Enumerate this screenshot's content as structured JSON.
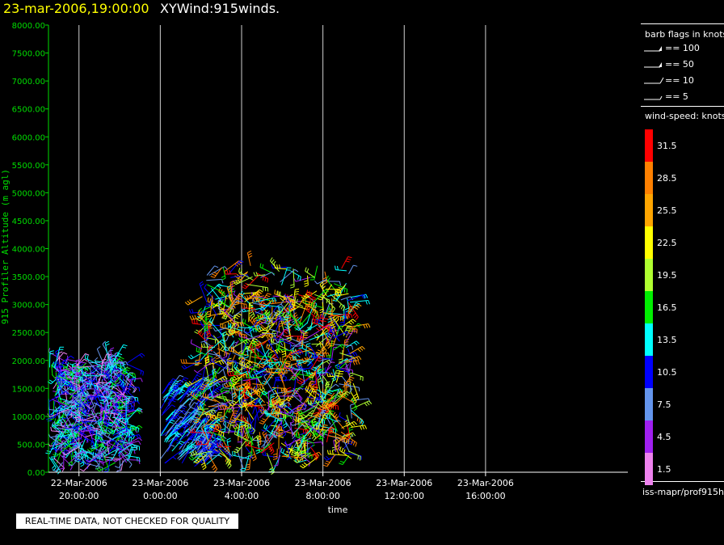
{
  "header": {
    "date": "23-mar-2006,19:00:00",
    "title": "XYWind:915winds."
  },
  "chart_data": {
    "type": "scatter",
    "ylabel": "915 Profiler Altitude (m agl)",
    "xlabel": "time",
    "ylim": [
      0,
      8000
    ],
    "xlim": [
      "2006-03-22 18:30",
      "2006-03-23 23:00"
    ],
    "yticks": [
      "0.00",
      "500.00",
      "1000.00",
      "1500.00",
      "2000.00",
      "2500.00",
      "3000.00",
      "3500.00",
      "4000.00",
      "4500.00",
      "5000.00",
      "5500.00",
      "6000.00",
      "6500.00",
      "7000.00",
      "7500.00",
      "8000.00"
    ],
    "xticks": [
      {
        "date": "22-Mar-2006",
        "time": "20:00:00"
      },
      {
        "date": "23-Mar-2006",
        "time": "0:00:00"
      },
      {
        "date": "23-Mar-2006",
        "time": "4:00:00"
      },
      {
        "date": "23-Mar-2006",
        "time": "8:00:00"
      },
      {
        "date": "23-Mar-2006",
        "time": "12:00:00"
      },
      {
        "date": "23-Mar-2006",
        "time": "16:00:00"
      }
    ],
    "grid": "vertical",
    "data_clusters": [
      {
        "time_start": "2006-03-22 18:30",
        "time_end": "2006-03-22 22:30",
        "alt_min": 150,
        "alt_max": 2000,
        "speed_range": [
          1.5,
          16.5
        ]
      },
      {
        "time_start": "2006-03-23 00:00",
        "time_end": "2006-03-23 02:30",
        "alt_min": 100,
        "alt_max": 1500,
        "speed_range": [
          7.5,
          13.5
        ]
      },
      {
        "time_start": "2006-03-23 02:00",
        "time_end": "2006-03-23 09:30",
        "alt_min": 200,
        "alt_max": 3700,
        "speed_range": [
          4.5,
          31.5
        ]
      }
    ]
  },
  "legend": {
    "barb_title": "barb flags in knots",
    "barbs": [
      {
        "label": "== 100",
        "kind": "pennant2"
      },
      {
        "label": "== 50",
        "kind": "pennant"
      },
      {
        "label": "== 10",
        "kind": "full"
      },
      {
        "label": "== 5",
        "kind": "half"
      }
    ],
    "speed_title": "wind-speed: knots",
    "colorbar": [
      {
        "label": "31.5",
        "color": "#ff0000"
      },
      {
        "label": "28.5",
        "color": "#ff8000"
      },
      {
        "label": "25.5",
        "color": "#ffa500"
      },
      {
        "label": "22.5",
        "color": "#ffff00"
      },
      {
        "label": "19.5",
        "color": "#b0ff30"
      },
      {
        "label": "16.5",
        "color": "#00ee00"
      },
      {
        "label": "13.5",
        "color": "#00ffff"
      },
      {
        "label": "10.5",
        "color": "#0000ff"
      },
      {
        "label": "7.5",
        "color": "#6495ed"
      },
      {
        "label": "4.5",
        "color": "#a020f0"
      },
      {
        "label": "1.5",
        "color": "#ee82ee"
      }
    ],
    "source": "iss-mapr/prof915h"
  },
  "footer": {
    "qc_note": "REAL-TIME DATA, NOT CHECKED FOR QUALITY"
  }
}
